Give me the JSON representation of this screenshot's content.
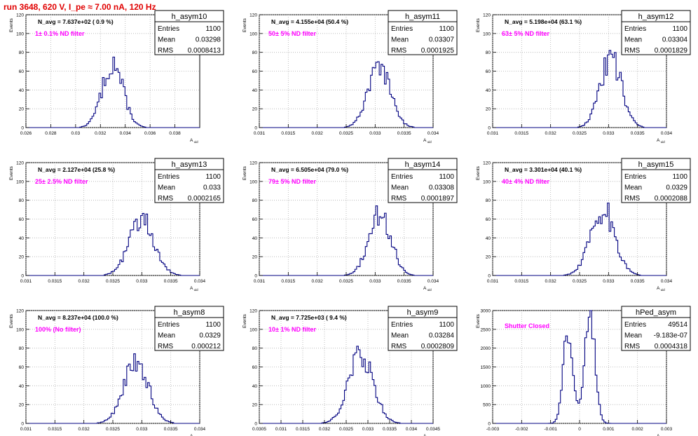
{
  "page": {
    "run_title": "run 3648,   620 V, I_pe ≈ 7.00 nA, 120 Hz"
  },
  "style": {
    "hist_color": "#000080",
    "annotation_color": "#ff00ff",
    "title_color": "#e00000"
  },
  "chart_data": [
    {
      "type": "histogram",
      "name": "h_asym10",
      "ylabel": "Events",
      "xlabel": "A_uid",
      "xlim": [
        0.026,
        0.04
      ],
      "ylim": [
        0,
        120
      ],
      "xticks": [
        "0.026",
        "0.028",
        "0.03",
        "0.032",
        "0.034",
        "0.036",
        "0.038"
      ],
      "xtick_values": [
        0.026,
        0.028,
        0.03,
        0.032,
        0.034,
        0.036,
        0.038
      ],
      "yticks": [
        "0",
        "20",
        "40",
        "60",
        "80",
        "100",
        "120"
      ],
      "ytick_values": [
        0,
        20,
        40,
        60,
        80,
        100,
        120
      ],
      "navg": "N_avg = 7.637e+02 ( 0.9 %)",
      "filter": "1± 0.1% ND filter",
      "stats": {
        "title": "h_asym10",
        "rows": [
          [
            "Entries",
            "1100"
          ],
          [
            "Mean",
            "0.03298"
          ],
          [
            "RMS",
            "0.0008413"
          ]
        ]
      },
      "dist": {
        "mean": 0.03298,
        "rms": 0.0008413,
        "peak": 75,
        "nbins": 100
      }
    },
    {
      "type": "histogram",
      "name": "h_asym11",
      "ylabel": "Events",
      "xlabel": "A_uid",
      "xlim": [
        0.031,
        0.034
      ],
      "ylim": [
        0,
        120
      ],
      "xticks": [
        "0.031",
        "0.0315",
        "0.032",
        "0.0325",
        "0.033",
        "0.0335",
        "0.034"
      ],
      "xtick_values": [
        0.031,
        0.0315,
        0.032,
        0.0325,
        0.033,
        0.0335,
        0.034
      ],
      "yticks": [
        "0",
        "20",
        "40",
        "60",
        "80",
        "100",
        "120"
      ],
      "ytick_values": [
        0,
        20,
        40,
        60,
        80,
        100,
        120
      ],
      "navg": "N_avg = 4.155e+04 (50.4 %)",
      "filter": "50± 5% ND filter",
      "stats": {
        "title": "h_asym11",
        "rows": [
          [
            "Entries",
            "1100"
          ],
          [
            "Mean",
            "0.03307"
          ],
          [
            "RMS",
            "0.0001925"
          ]
        ]
      },
      "dist": {
        "mean": 0.03307,
        "rms": 0.0001925,
        "peak": 70,
        "nbins": 100
      }
    },
    {
      "type": "histogram",
      "name": "h_asym12",
      "ylabel": "Events",
      "xlabel": "A_uid",
      "xlim": [
        0.031,
        0.034
      ],
      "ylim": [
        0,
        120
      ],
      "xticks": [
        "0.031",
        "0.0315",
        "0.032",
        "0.0325",
        "0.033",
        "0.0335",
        "0.034"
      ],
      "xtick_values": [
        0.031,
        0.0315,
        0.032,
        0.0325,
        0.033,
        0.0335,
        0.034
      ],
      "yticks": [
        "0",
        "20",
        "40",
        "60",
        "80",
        "100",
        "120"
      ],
      "ytick_values": [
        0,
        20,
        40,
        60,
        80,
        100,
        120
      ],
      "navg": "N_avg = 5.198e+04 (63.1 %)",
      "filter": "63± 5% ND filter",
      "stats": {
        "title": "h_asym12",
        "rows": [
          [
            "Entries",
            "1100"
          ],
          [
            "Mean",
            "0.03304"
          ],
          [
            "RMS",
            "0.0001829"
          ]
        ]
      },
      "dist": {
        "mean": 0.03304,
        "rms": 0.0001829,
        "peak": 82,
        "nbins": 100
      }
    },
    {
      "type": "histogram",
      "name": "h_asym13",
      "ylabel": "Events",
      "xlabel": "A_uid",
      "xlim": [
        0.031,
        0.034
      ],
      "ylim": [
        0,
        120
      ],
      "xticks": [
        "0.031",
        "0.0315",
        "0.032",
        "0.0325",
        "0.033",
        "0.0335",
        "0.034"
      ],
      "xtick_values": [
        0.031,
        0.0315,
        0.032,
        0.0325,
        0.033,
        0.0335,
        0.034
      ],
      "yticks": [
        "0",
        "20",
        "40",
        "60",
        "80",
        "100",
        "120"
      ],
      "ytick_values": [
        0,
        20,
        40,
        60,
        80,
        100,
        120
      ],
      "navg": "N_avg = 2.127e+04 (25.8 %)",
      "filter": "25± 2.5% ND filter",
      "stats": {
        "title": "h_asym13",
        "rows": [
          [
            "Entries",
            "1100"
          ],
          [
            "Mean",
            "0.033"
          ],
          [
            "RMS",
            "0.0002165"
          ]
        ]
      },
      "dist": {
        "mean": 0.033,
        "rms": 0.0002165,
        "peak": 66,
        "nbins": 100
      }
    },
    {
      "type": "histogram",
      "name": "h_asym14",
      "ylabel": "Events",
      "xlabel": "A_uid",
      "xlim": [
        0.031,
        0.034
      ],
      "ylim": [
        0,
        120
      ],
      "xticks": [
        "0.031",
        "0.0315",
        "0.032",
        "0.0325",
        "0.033",
        "0.0335",
        "0.034"
      ],
      "xtick_values": [
        0.031,
        0.0315,
        0.032,
        0.0325,
        0.033,
        0.0335,
        0.034
      ],
      "yticks": [
        "0",
        "20",
        "40",
        "60",
        "80",
        "100",
        "120"
      ],
      "ytick_values": [
        0,
        20,
        40,
        60,
        80,
        100,
        120
      ],
      "navg": "N_avg = 6.505e+04 (79.0 %)",
      "filter": "79± 5% ND filter",
      "stats": {
        "title": "h_asym14",
        "rows": [
          [
            "Entries",
            "1100"
          ],
          [
            "Mean",
            "0.03308"
          ],
          [
            "RMS",
            "0.0001897"
          ]
        ]
      },
      "dist": {
        "mean": 0.03308,
        "rms": 0.0001897,
        "peak": 74,
        "nbins": 100
      }
    },
    {
      "type": "histogram",
      "name": "h_asym15",
      "ylabel": "Events",
      "xlabel": "A_uid",
      "xlim": [
        0.031,
        0.034
      ],
      "ylim": [
        0,
        120
      ],
      "xticks": [
        "0.031",
        "0.0315",
        "0.032",
        "0.0325",
        "0.033",
        "0.0335",
        "0.034"
      ],
      "xtick_values": [
        0.031,
        0.0315,
        0.032,
        0.0325,
        0.033,
        0.0335,
        0.034
      ],
      "yticks": [
        "0",
        "20",
        "40",
        "60",
        "80",
        "100",
        "120"
      ],
      "ytick_values": [
        0,
        20,
        40,
        60,
        80,
        100,
        120
      ],
      "navg": "N_avg = 3.301e+04 (40.1 %)",
      "filter": "40± 4% ND filter",
      "stats": {
        "title": "h_asym15",
        "rows": [
          [
            "Entries",
            "1100"
          ],
          [
            "Mean",
            "0.0329"
          ],
          [
            "RMS",
            "0.0002088"
          ]
        ]
      },
      "dist": {
        "mean": 0.0329,
        "rms": 0.0002088,
        "peak": 77,
        "nbins": 100
      }
    },
    {
      "type": "histogram",
      "name": "h_asym8",
      "ylabel": "Events",
      "xlabel": "A_uid",
      "xlim": [
        0.031,
        0.034
      ],
      "ylim": [
        0,
        120
      ],
      "xticks": [
        "0.031",
        "0.0315",
        "0.032",
        "0.0325",
        "0.033",
        "0.0335",
        "0.034"
      ],
      "xtick_values": [
        0.031,
        0.0315,
        0.032,
        0.0325,
        0.033,
        0.0335,
        0.034
      ],
      "yticks": [
        "0",
        "20",
        "40",
        "60",
        "80",
        "100",
        "120"
      ],
      "ytick_values": [
        0,
        20,
        40,
        60,
        80,
        100,
        120
      ],
      "navg": "N_avg = 8.237e+04 (100.0 %)",
      "filter": "100% (No filter)",
      "stats": {
        "title": "h_asym8",
        "rows": [
          [
            "Entries",
            "1100"
          ],
          [
            "Mean",
            "0.0329"
          ],
          [
            "RMS",
            "0.000212"
          ]
        ]
      },
      "dist": {
        "mean": 0.0329,
        "rms": 0.000212,
        "peak": 74,
        "nbins": 100
      }
    },
    {
      "type": "histogram",
      "name": "h_asym9",
      "ylabel": "Events",
      "xlabel": "A_uid",
      "xlim": [
        0.0305,
        0.0345
      ],
      "ylim": [
        0,
        120
      ],
      "xticks": [
        "0.0305",
        "0.031",
        "0.0315",
        "0.032",
        "0.0325",
        "0.033",
        "0.0335",
        "0.034",
        "0.0345"
      ],
      "xtick_values": [
        0.0305,
        0.031,
        0.0315,
        0.032,
        0.0325,
        0.033,
        0.0335,
        0.034,
        0.0345
      ],
      "yticks": [
        "0",
        "20",
        "40",
        "60",
        "80",
        "100",
        "120"
      ],
      "ytick_values": [
        0,
        20,
        40,
        60,
        80,
        100,
        120
      ],
      "navg": "N_avg = 7.725e+03 ( 9.4 %)",
      "filter": "10± 1% ND filter",
      "stats": {
        "title": "h_asym9",
        "rows": [
          [
            "Entries",
            "1100"
          ],
          [
            "Mean",
            "0.03284"
          ],
          [
            "RMS",
            "0.0002809"
          ]
        ]
      },
      "dist": {
        "mean": 0.03284,
        "rms": 0.0002809,
        "peak": 82,
        "nbins": 100
      }
    },
    {
      "type": "histogram",
      "name": "hPed_asym",
      "ylabel": "Events",
      "xlabel": "A_uid",
      "xlim": [
        -0.003,
        0.003
      ],
      "ylim": [
        0,
        3000
      ],
      "xticks": [
        "-0.003",
        "-0.002",
        "-0.001",
        "0",
        "0.001",
        "0.002",
        "0.003"
      ],
      "xtick_values": [
        -0.003,
        -0.002,
        -0.001,
        0,
        0.001,
        0.002,
        0.003
      ],
      "yticks": [
        "0",
        "500",
        "1000",
        "1500",
        "2000",
        "2500",
        "3000"
      ],
      "ytick_values": [
        0,
        500,
        1000,
        1500,
        2000,
        2500,
        3000
      ],
      "navg": "",
      "filter": "Shutter Closed",
      "stats": {
        "title": "hPed_asym",
        "rows": [
          [
            "Entries",
            "49514"
          ],
          [
            "Mean",
            "-9.183e-07"
          ],
          [
            "RMS",
            "0.0004318"
          ]
        ]
      },
      "dist": {
        "bimodal": true,
        "mean1": -0.00038,
        "mean2": 0.00036,
        "sigma": 0.00017,
        "peak1": 2450,
        "peak2": 2900,
        "nbins": 100
      }
    }
  ]
}
